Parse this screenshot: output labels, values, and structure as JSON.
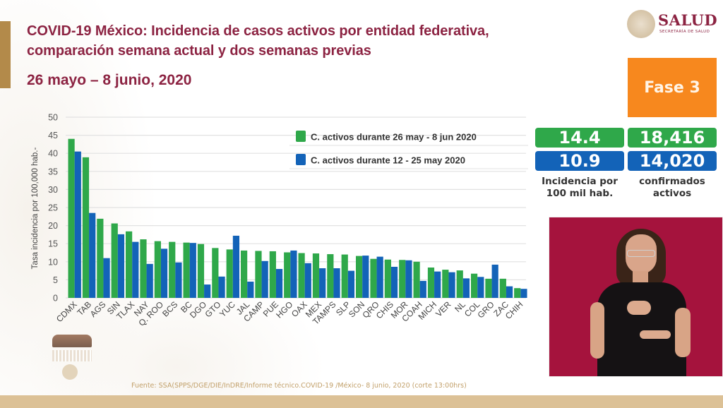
{
  "header": {
    "title_line1": "COVID-19 México: Incidencia de casos activos por entidad federativa,",
    "title_line2": "comparación semana actual y dos semanas previas",
    "date_range": "26 mayo – 8 junio, 2020",
    "logo_word": "SALUD",
    "logo_sub": "SECRETARÍA DE SALUD"
  },
  "phase_badge": "Fase 3",
  "stats": {
    "incidence_current": "14.4",
    "confirmed_active_current": "18,416",
    "incidence_previous": "10.9",
    "confirmed_active_previous": "14,020",
    "incidence_label_line1": "Incidencia por",
    "incidence_label_line2": "100 mil hab.",
    "confirmed_label_line1": "confirmados",
    "confirmed_label_line2": "activos"
  },
  "colors": {
    "current": "#2fa84a",
    "previous": "#1363b8",
    "title": "#8c2342",
    "phase": "#f7881e"
  },
  "footer": {
    "source": "Fuente: SSA(SPPS/DGE/DIE/InDRE/Informe técnico.COVID-19 /México- 8 junio, 2020 (corte 13:00hrs)"
  },
  "chart_data": {
    "type": "bar",
    "title": "",
    "xlabel": "",
    "ylabel": "Tasa incidencia por 100,000 hab.-",
    "ylim": [
      0,
      50
    ],
    "yticks": [
      0,
      5,
      10,
      15,
      20,
      25,
      30,
      35,
      40,
      45,
      50
    ],
    "grid": true,
    "legend_position": "top-right",
    "categories": [
      "CDMX",
      "TAB",
      "AGS",
      "SIN",
      "TLAX",
      "NAY",
      "Q. ROO",
      "BCS",
      "BC",
      "DGO",
      "GTO",
      "YUC",
      "JAL",
      "CAMP",
      "PUE",
      "HGO",
      "OAX",
      "MEX",
      "TAMPS",
      "SLP",
      "SON",
      "QRO",
      "CHIS",
      "MOR",
      "COAH",
      "MICH",
      "VER",
      "NL",
      "COL",
      "GRO",
      "ZAC",
      "CHIH"
    ],
    "series": [
      {
        "name": "C. activos durante 26 may - 8 jun 2020",
        "color": "#2fa84a",
        "values": [
          44.0,
          38.9,
          21.9,
          20.6,
          18.4,
          16.2,
          15.7,
          15.5,
          15.3,
          14.9,
          13.8,
          13.4,
          13.1,
          13.0,
          12.9,
          12.6,
          12.4,
          12.3,
          12.1,
          12.0,
          11.6,
          10.8,
          10.6,
          10.5,
          10.0,
          8.4,
          7.8,
          7.6,
          6.7,
          5.3,
          5.3,
          2.7
        ]
      },
      {
        "name": "C. activos durante  12 - 25 may 2020",
        "color": "#1363b8",
        "values": [
          40.5,
          23.5,
          11.0,
          17.6,
          15.5,
          9.4,
          13.6,
          9.8,
          15.2,
          3.7,
          5.9,
          17.2,
          4.5,
          10.2,
          8.0,
          13.1,
          9.6,
          8.2,
          8.2,
          7.5,
          11.7,
          11.4,
          8.6,
          10.4,
          4.7,
          7.3,
          7.1,
          5.4,
          5.8,
          9.2,
          3.2,
          2.5
        ]
      }
    ]
  }
}
